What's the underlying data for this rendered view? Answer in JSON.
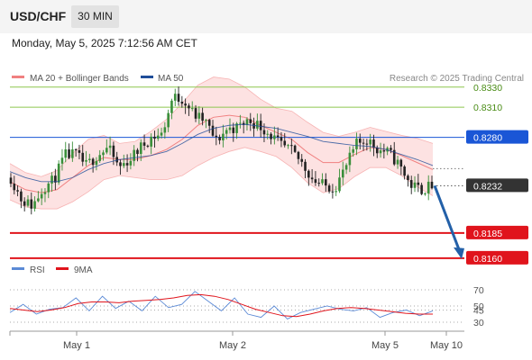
{
  "header": {
    "symbol": "USD/CHF",
    "timeframe": "30 MIN"
  },
  "timestamp": "Monday, May 5, 2025 7:12:56 AM CET",
  "colors": {
    "bollinger": "#f08080",
    "bollinger_fill": "#fde2e2",
    "ma50": "#1f4e99",
    "rsi": "#5b8ad6",
    "rsi_ma": "#e0141c",
    "target_line": "#e0141c",
    "pivot_line": "#1a56d6",
    "resistance_line": "#8dc64f",
    "resistance_text": "#4a8c16",
    "bull_candle": "#3a8f3a",
    "bear_candle": "#222222",
    "arrow": "#2360a8"
  },
  "chart_data": [
    {
      "type": "candlestick",
      "title": "",
      "legend": [
        {
          "label": "MA 20 + Bollinger Bands",
          "color": "#f08080"
        },
        {
          "label": "MA 50",
          "color": "#1f4e99"
        }
      ],
      "credit": "Research © 2025 Trading Central",
      "x_ticks": [
        "May 1",
        "May 2",
        "May 5",
        "May 10"
      ],
      "ylim": [
        0.815,
        0.8345
      ],
      "price_levels": [
        {
          "value": 0.833,
          "label": "0.8330",
          "role": "resistance"
        },
        {
          "value": 0.831,
          "label": "0.8310",
          "role": "resistance"
        },
        {
          "value": 0.828,
          "label": "0.8280",
          "role": "pivot"
        },
        {
          "value": 0.8232,
          "label": "0.8232",
          "role": "last"
        },
        {
          "value": 0.8185,
          "label": "0.8185",
          "role": "target"
        },
        {
          "value": 0.816,
          "label": "0.8160",
          "role": "target"
        }
      ],
      "price_anchors": [
        0.824,
        0.8218,
        0.8212,
        0.823,
        0.8238,
        0.8262,
        0.8263,
        0.8252,
        0.8262,
        0.827,
        0.825,
        0.8258,
        0.827,
        0.828,
        0.8283,
        0.832,
        0.8318,
        0.8302,
        0.8296,
        0.8276,
        0.8288,
        0.829,
        0.8297,
        0.8292,
        0.8283,
        0.8272,
        0.8266,
        0.8254,
        0.8238,
        0.8232,
        0.823,
        0.825,
        0.8273,
        0.8278,
        0.8268,
        0.8265,
        0.8252,
        0.8233,
        0.8228,
        0.8232
      ],
      "bollinger_mid": [
        0.8236,
        0.8228,
        0.8225,
        0.8228,
        0.824,
        0.8252,
        0.826,
        0.8258,
        0.8258,
        0.8262,
        0.8268,
        0.8278,
        0.8292,
        0.83,
        0.8302,
        0.83,
        0.8292,
        0.8285,
        0.8278,
        0.8265,
        0.8255,
        0.8255,
        0.8263,
        0.827,
        0.8268,
        0.8262,
        0.8255,
        0.8248
      ],
      "bollinger_width": [
        0.0018,
        0.0017,
        0.0016,
        0.0019,
        0.0024,
        0.0026,
        0.0022,
        0.0016,
        0.0018,
        0.0024,
        0.003,
        0.0036,
        0.004,
        0.004,
        0.0036,
        0.003,
        0.0026,
        0.0024,
        0.0028,
        0.003,
        0.003,
        0.0026,
        0.0022,
        0.002,
        0.0018,
        0.002,
        0.0024,
        0.0026
      ],
      "ma50": [
        0.8246,
        0.824,
        0.8236,
        0.8236,
        0.824,
        0.8248,
        0.8254,
        0.8258,
        0.826,
        0.8262,
        0.8266,
        0.8274,
        0.8283,
        0.8289,
        0.8292,
        0.8293,
        0.8291,
        0.8289,
        0.8285,
        0.8281,
        0.8276,
        0.8274,
        0.8272,
        0.8271,
        0.8268,
        0.8263,
        0.8258,
        0.8252
      ],
      "forecast": {
        "from": 0.8232,
        "to": 0.816
      }
    },
    {
      "type": "line",
      "title": "",
      "legend": [
        {
          "label": "RSI",
          "color": "#5b8ad6"
        },
        {
          "label": "9MA",
          "color": "#e0141c"
        }
      ],
      "y_ticks": [
        "70",
        "50",
        "45",
        "30"
      ],
      "y_tick_values": [
        70,
        50,
        45,
        30
      ],
      "ylim": [
        25,
        75
      ],
      "series": [
        {
          "name": "RSI",
          "values": [
            42,
            52,
            40,
            46,
            48,
            60,
            44,
            62,
            47,
            56,
            44,
            62,
            48,
            52,
            68,
            56,
            44,
            60,
            40,
            36,
            50,
            34,
            42,
            46,
            50,
            46,
            44,
            48,
            36,
            42,
            45,
            38,
            44
          ]
        },
        {
          "name": "9MA",
          "values": [
            47,
            45,
            43,
            45,
            48,
            53,
            55,
            55,
            54,
            56,
            57,
            58,
            60,
            63,
            64,
            62,
            58,
            52,
            46,
            42,
            38,
            37,
            40,
            44,
            47,
            48,
            47,
            45,
            43,
            41,
            40,
            40
          ]
        }
      ]
    }
  ]
}
